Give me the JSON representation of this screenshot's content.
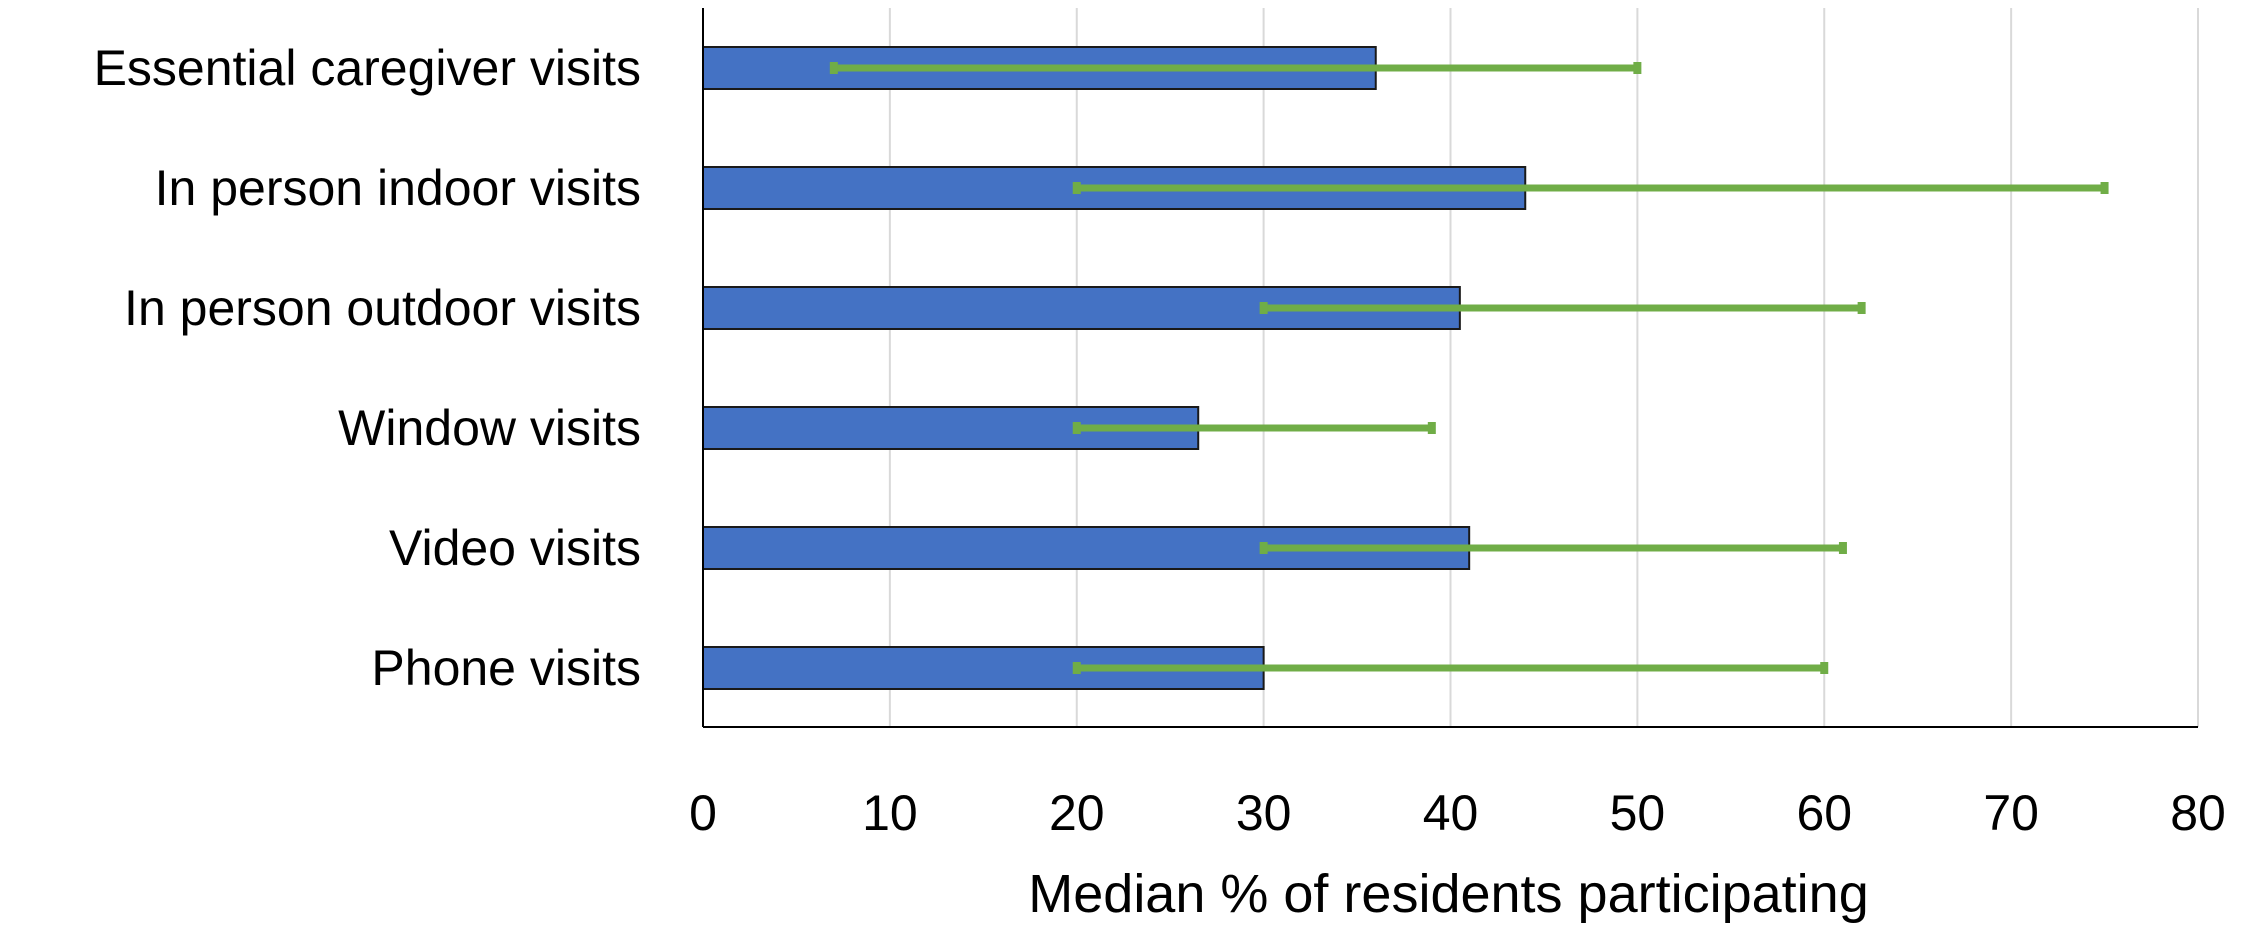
{
  "chart_data": {
    "type": "bar",
    "orientation": "horizontal",
    "categories": [
      "Essential caregiver visits",
      "In person indoor visits",
      "In person outdoor visits",
      "Window visits",
      "Video visits",
      "Phone visits"
    ],
    "values": [
      36,
      44,
      40.5,
      26.5,
      41,
      30
    ],
    "error_bars": [
      {
        "low": 7,
        "high": 50
      },
      {
        "low": 20,
        "high": 75
      },
      {
        "low": 30,
        "high": 62
      },
      {
        "low": 20,
        "high": 39
      },
      {
        "low": 30,
        "high": 61
      },
      {
        "low": 20,
        "high": 60
      }
    ],
    "xlabel": "Median % of residents participating",
    "ylabel": "",
    "xlim": [
      0,
      80
    ],
    "xticks": [
      0,
      10,
      20,
      30,
      40,
      50,
      60,
      70,
      80
    ],
    "grid": "vertical",
    "colors": {
      "bar_fill": "#4472C4",
      "bar_stroke": "#1a1a1a",
      "error_bar": "#70AD47",
      "grid": "#d9d9d9",
      "axis": "#000000"
    }
  }
}
